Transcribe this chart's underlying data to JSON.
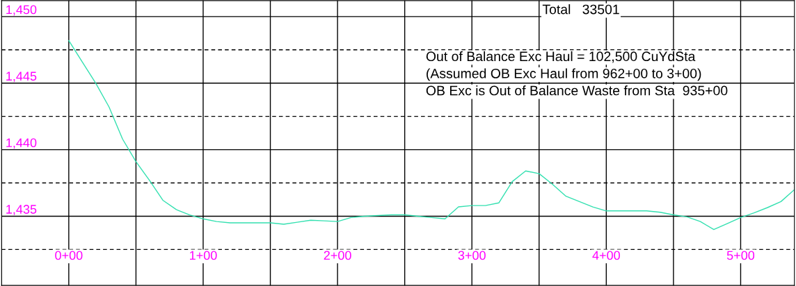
{
  "chart_data": {
    "type": "line",
    "categories": [
      null,
      null,
      null,
      null,
      null,
      "0+00",
      null,
      null,
      null,
      null,
      null,
      null,
      null,
      null,
      null,
      "1+00",
      null,
      null,
      null,
      null,
      null,
      null,
      null,
      null,
      null,
      "2+00",
      null,
      null,
      null,
      null,
      null,
      null,
      null,
      null,
      null,
      "3+00",
      null,
      null,
      null,
      null,
      null,
      null,
      null,
      null,
      null,
      "4+00",
      null,
      null,
      null,
      null,
      null,
      null,
      null,
      null,
      null,
      "5+00",
      null,
      null,
      null,
      null
    ],
    "series": [
      {
        "color": "#33e0b0",
        "values": [
          null,
          null,
          null,
          null,
          null,
          1448.2,
          1446.6,
          1445.0,
          1443.2,
          1440.8,
          1439.1,
          1437.7,
          1436.2,
          1435.5,
          1435.1,
          1434.8,
          1434.6,
          1434.5,
          1434.5,
          1434.5,
          1434.5,
          1434.4,
          1434.55,
          1434.7,
          1434.65,
          1434.6,
          1434.9,
          1435.0,
          1435.05,
          1435.1,
          1435.1,
          1435.0,
          1434.9,
          1434.8,
          1435.7,
          1435.8,
          1435.8,
          1436.0,
          1437.6,
          1438.4,
          1438.2,
          1437.4,
          1436.5,
          1436.1,
          1435.7,
          1435.4,
          1435.4,
          1435.4,
          1435.4,
          1435.3,
          1435.1,
          1434.95,
          1434.6,
          1434.0,
          1434.45,
          1434.9,
          1435.25,
          1435.65,
          1436.1,
          1437.0
        ]
      }
    ],
    "ylim": [
      1429.8,
      1451.2
    ],
    "yticks": [
      {
        "value": 1432.5,
        "label": null
      },
      {
        "value": 1435,
        "label": "1,435"
      },
      {
        "value": 1437.5,
        "label": null
      },
      {
        "value": 1440,
        "label": "1,440"
      },
      {
        "value": 1442.5,
        "label": null
      },
      {
        "value": 1445,
        "label": "1,445"
      },
      {
        "value": 1447.5,
        "label": null
      },
      {
        "value": 1450,
        "label": "1,450"
      }
    ],
    "grid": true,
    "annotations": [
      "Total   33501",
      "Out of Balance Exc Haul = 102,500 CuYdSta",
      "(Assumed OB Exc Haul from 962+00 to 3+00)",
      "OB Exc is Out of Balance Waste from Sta  935+00"
    ]
  }
}
